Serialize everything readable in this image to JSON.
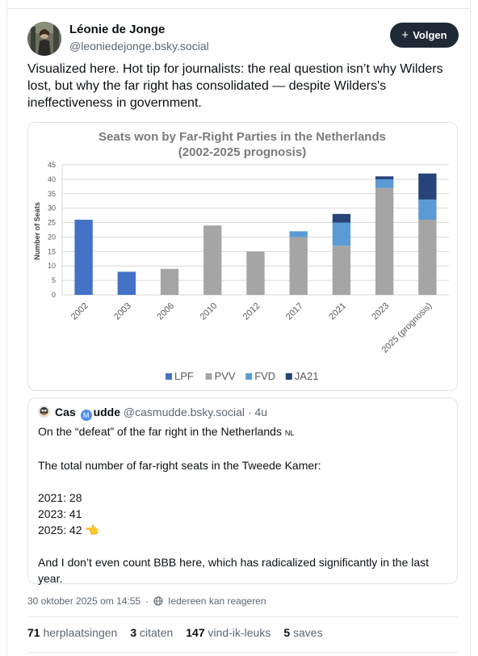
{
  "author": {
    "name": "Léonie de Jonge",
    "handle": "@leoniedejonge.bsky.social"
  },
  "follow_button": {
    "label": "Volgen",
    "icon": "plus-icon"
  },
  "post": {
    "text": "Visualized here. Hot tip for journalists: the real question isn’t why Wilders lost, but why the far right has consolidated — despite Wilders's ineffectiveness in government."
  },
  "chart_data": {
    "type": "bar",
    "stacked": true,
    "title": "Seats won by Far-Right Parties in the Netherlands",
    "subtitle": "(2002-2025 prognosis)",
    "xlabel": "",
    "ylabel": "Number of Seats",
    "ylim": [
      0,
      45
    ],
    "yticks": [
      0,
      5,
      10,
      15,
      20,
      25,
      30,
      35,
      40,
      45
    ],
    "grid": true,
    "legend_position": "bottom",
    "categories": [
      "2002",
      "2003",
      "2006",
      "2010",
      "2012",
      "2017",
      "2021",
      "2023",
      "2025 (prognosis)"
    ],
    "series": [
      {
        "name": "LPF",
        "color": "#4472c4",
        "values": [
          26,
          8,
          0,
          0,
          0,
          0,
          0,
          0,
          0
        ]
      },
      {
        "name": "PVV",
        "color": "#a5a5a5",
        "values": [
          0,
          0,
          9,
          24,
          15,
          20,
          17,
          37,
          26
        ]
      },
      {
        "name": "FVD",
        "color": "#5b9bd5",
        "values": [
          0,
          0,
          0,
          0,
          0,
          2,
          8,
          3,
          7
        ]
      },
      {
        "name": "JA21",
        "color": "#264478",
        "values": [
          0,
          0,
          0,
          0,
          0,
          0,
          3,
          1,
          9
        ]
      }
    ]
  },
  "quote": {
    "name_part1": "Cas",
    "name_part2": "udde",
    "handle": "@casmudde.bsky.social",
    "separator": "·",
    "time": "4u",
    "line1": "On the “defeat” of the far right in the Netherlands",
    "lang": "NL",
    "line2": "The total number of far-right seats in the Tweede Kamer:",
    "line3": "2021: 28",
    "line4": "2023: 41",
    "line5": "2025: 42 👈",
    "line6": "And I don’t even count BBB here, which has radicalized significantly in the last year."
  },
  "meta": {
    "timestamp": "30 oktober 2025 om 14:55",
    "separator": "·",
    "reply_setting": "Iedereen kan reageren"
  },
  "stats": {
    "reposts_count": "71",
    "reposts_label": "herplaatsingen",
    "quotes_count": "3",
    "quotes_label": "citaten",
    "likes_count": "147",
    "likes_label": "vind-ik-leuks",
    "saves_count": "5",
    "saves_label": "saves"
  }
}
